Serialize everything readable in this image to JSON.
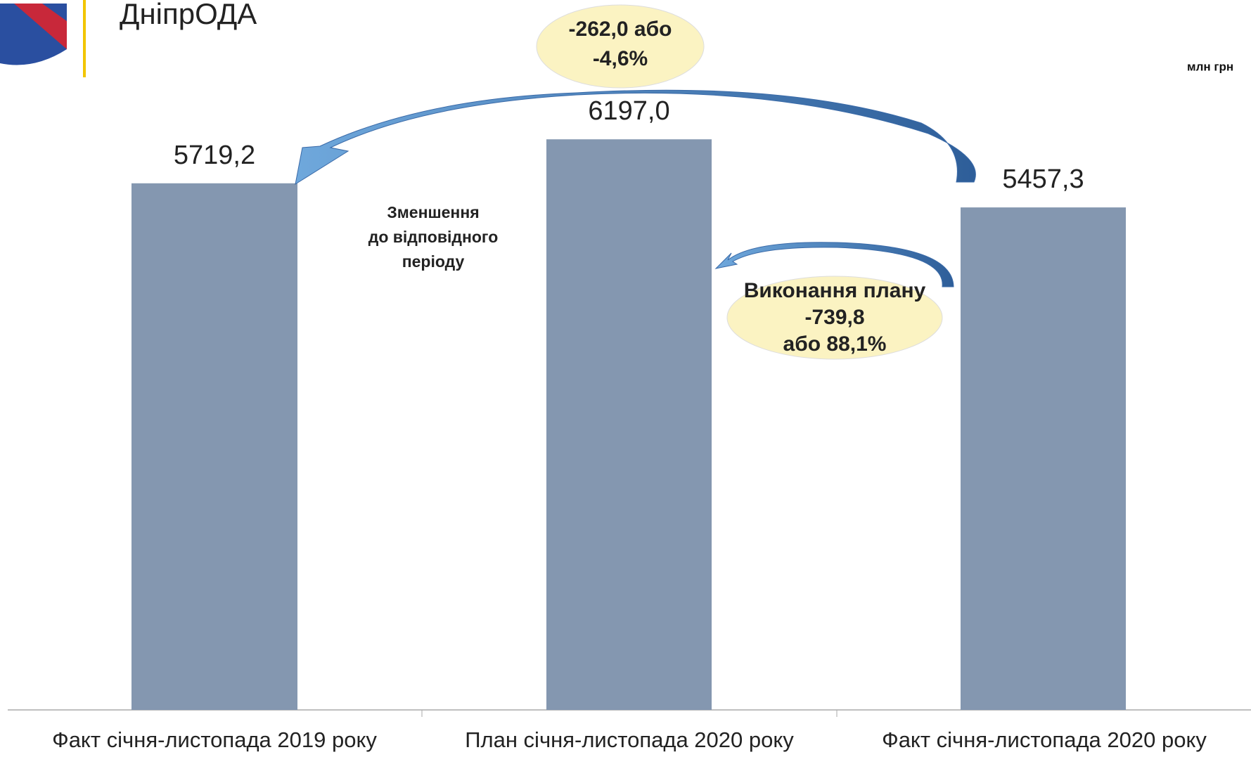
{
  "header": {
    "title": "ДніпрОДА"
  },
  "chart_data": {
    "type": "bar",
    "unit": "млн грн",
    "categories": [
      "Факт січня-листопада 2019 року",
      "План січня-листопада 2020 року",
      "Факт січня-листопада 2020 року"
    ],
    "values": [
      5719.2,
      6197.0,
      5457.3
    ],
    "value_labels": [
      "5719,2",
      "6197,0",
      "5457,3"
    ],
    "color": "#8497b0",
    "ylim": [
      0,
      7000
    ],
    "annotations": [
      {
        "lines": [
          "-262,0 або",
          "-4,6%"
        ]
      },
      {
        "lines": [
          "Зменшення",
          "до відповідного",
          "періоду"
        ]
      },
      {
        "lines": [
          "Виконання плану",
          "-739,8",
          "або 88,1%"
        ]
      }
    ]
  }
}
